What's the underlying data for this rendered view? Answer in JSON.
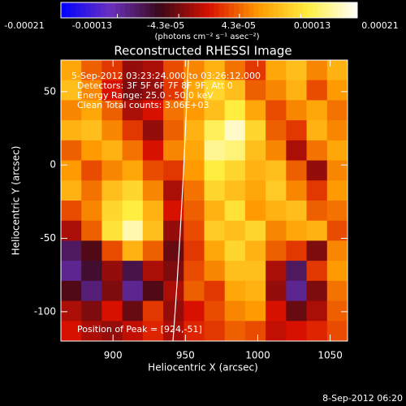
{
  "chart_data": {
    "type": "heatmap",
    "title": "Reconstructed RHESSI Image",
    "colorbar_label": "(photons cm⁻² s⁻¹ asec⁻²)",
    "clim": [
      -0.00021,
      0.00021
    ],
    "colorbar_ticks": [
      -0.00021,
      -0.00013,
      {
        "value": -4.3e-05,
        "label": "-4.3e-05"
      },
      {
        "value": 4.3e-05,
        "label": "4.3e-05"
      },
      0.00013,
      0.00021
    ],
    "colorscale": [
      "#0000ff",
      "#6a30c0",
      "#3a0818",
      "#d81000",
      "#ff9a00",
      "#ffee40",
      "#ffffff"
    ],
    "x_label": "Heliocentric X (arcsec)",
    "y_label": "Heliocentric Y (arcsec)",
    "xlim": [
      864,
      1062
    ],
    "ylim": [
      -120,
      71.5
    ],
    "xticks": [
      900,
      950,
      1000,
      1050
    ],
    "yticks": [
      -100,
      -50,
      0,
      50
    ],
    "annotations": [
      "5-Sep-2012 03:23:24.000 to 03:26:12.000",
      "Detectors: 3F 5F 6F 7F 8F 9F, Att 0",
      "Energy Range: 25.0 - 50.0 keV",
      "Clean     Total counts: 3.06E+03"
    ],
    "peak_label": "Position of Peak = [924,-51]",
    "timestamp": "8-Sep-2012 06:20",
    "values": [
      [
        8e-05,
        4e-05,
        2e-05,
        -3e-05,
        -2e-05,
        3e-05,
        6e-05,
        9e-05,
        5e-05,
        2e-05,
        8e-05,
        0.0001,
        6e-05,
        9e-05
      ],
      [
        0.0001,
        6e-05,
        0,
        -4e-05,
        -3e-05,
        2e-05,
        8e-05,
        0.00012,
        0.0001,
        4e-05,
        6e-05,
        9e-05,
        3e-05,
        7e-05
      ],
      [
        6e-05,
        8e-05,
        4e-05,
        -2e-05,
        0,
        5e-05,
        7e-05,
        0.0001,
        0.00014,
        8e-05,
        3e-05,
        6e-05,
        8e-05,
        5e-05
      ],
      [
        9e-05,
        0.0001,
        6e-05,
        2e-05,
        -3e-05,
        4e-05,
        9e-05,
        0.00015,
        0.00019,
        0.00012,
        4e-05,
        2e-05,
        9e-05,
        6e-05
      ],
      [
        4e-05,
        7e-05,
        9e-05,
        5e-05,
        0,
        6e-05,
        8e-05,
        0.00017,
        0.00016,
        0.0001,
        6e-05,
        -2e-05,
        5e-05,
        8e-05
      ],
      [
        7e-05,
        3e-05,
        6e-05,
        8e-05,
        3e-05,
        2e-05,
        7e-05,
        0.00014,
        0.00012,
        9e-05,
        0.0001,
        4e-05,
        -3e-05,
        6e-05
      ],
      [
        9e-05,
        5e-05,
        0.0001,
        0.00012,
        6e-05,
        -2e-05,
        5e-05,
        0.00012,
        0.0001,
        8e-05,
        0.00011,
        6e-05,
        2e-05,
        7e-05
      ],
      [
        3e-05,
        6e-05,
        0.00012,
        0.00014,
        9e-05,
        0,
        4e-05,
        9e-05,
        0.00013,
        7e-05,
        9e-05,
        0.0001,
        4e-05,
        5e-05
      ],
      [
        -2e-05,
        4e-05,
        0.00013,
        0.00018,
        0.0001,
        -3e-05,
        3e-05,
        0.00011,
        0.0001,
        0.00012,
        6e-05,
        8e-05,
        9e-05,
        3e-05
      ],
      [
        -0.0001,
        -6e-05,
        3e-05,
        9e-05,
        4e-05,
        -5e-05,
        2e-05,
        8e-05,
        0.00012,
        9e-05,
        4e-05,
        2e-05,
        -4e-05,
        6e-05
      ],
      [
        -0.00012,
        -8e-05,
        -3e-05,
        -9e-05,
        -2e-05,
        -4e-05,
        3e-05,
        6e-05,
        0.0001,
        0.0001,
        -2e-05,
        -0.0001,
        2e-05,
        7e-05
      ],
      [
        -6e-05,
        -0.00011,
        -4e-05,
        -0.00012,
        -6e-05,
        -2e-05,
        4e-05,
        2e-05,
        8e-05,
        9e-05,
        -3e-05,
        -0.00012,
        -4e-05,
        5e-05
      ],
      [
        -2e-05,
        -4e-05,
        0,
        -5e-05,
        2e-05,
        -3e-05,
        0,
        3e-05,
        6e-05,
        7e-05,
        0,
        -5e-05,
        -2e-05,
        4e-05
      ],
      [
        0,
        -2e-05,
        -3e-05,
        -1e-05,
        1e-05,
        -2e-05,
        1e-05,
        2e-05,
        4e-05,
        3e-05,
        -1e-05,
        0,
        1e-05,
        3e-05
      ]
    ]
  }
}
